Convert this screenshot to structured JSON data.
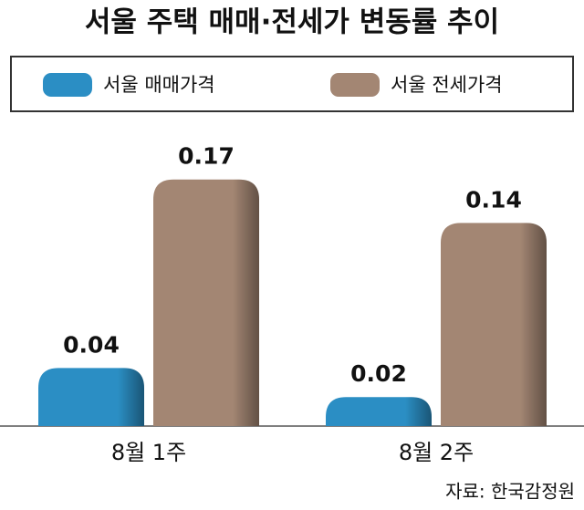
{
  "chart_data": {
    "type": "bar",
    "title": "서울 주택 매매·전세가 변동률 추이",
    "categories": [
      "8월 1주",
      "8월 2주"
    ],
    "series": [
      {
        "name": "서울 매매가격",
        "color": "#2b8ec4",
        "values": [
          0.04,
          0.02
        ]
      },
      {
        "name": "서울 전세가격",
        "color": "#a38673",
        "values": [
          0.17,
          0.14
        ]
      }
    ],
    "source": "자료: 한국감정원"
  }
}
